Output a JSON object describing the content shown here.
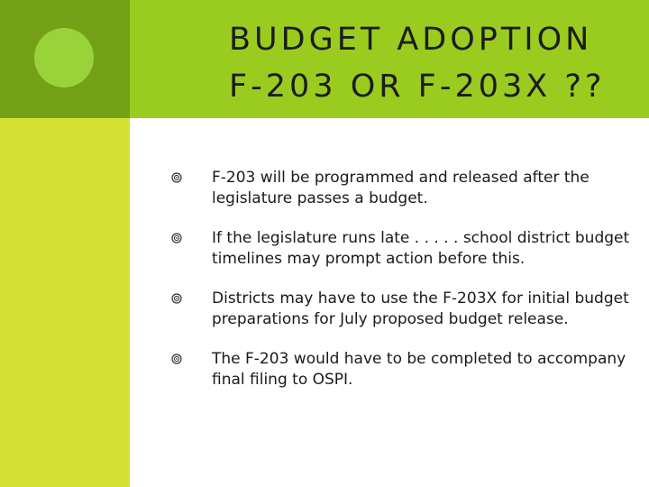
{
  "slide": {
    "title_line1": "BUDGET ADOPTION",
    "title_line2": "F-203 OR F-203X ??",
    "bullets": [
      "F-203 will be programmed and released after the legislature passes a budget.",
      "If the legislature runs late . . . . . school district budget timelines may prompt action before this.",
      "Districts may have to use the F-203X for initial budget preparations for July proposed budget release.",
      "The F-203 would have to be completed to accompany final filing to OSPI."
    ],
    "bullet_icon": "target-circle-bullet-icon",
    "colors": {
      "corner": "#73a017",
      "corner_circle": "#9ad23a",
      "title_band": "#9acc1f",
      "left_band": "#d4e236"
    }
  }
}
